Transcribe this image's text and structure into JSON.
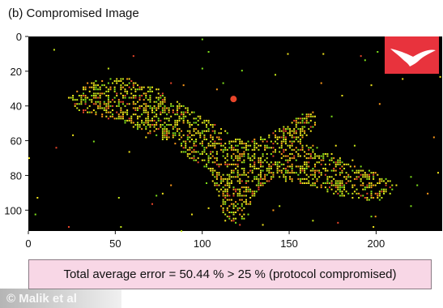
{
  "panel_title": "(b) Compromised Image",
  "error_text": "Total average error = 50.44 % > 25 % (protocol compromised)",
  "credit_text": "© Malik et al",
  "inset_icon": "bird-silhouette-icon",
  "colors": {
    "plot_background": "#000000",
    "inset_background": "#e8333d",
    "error_box_background": "#f8d7e6",
    "pixel_palette": [
      "#f2e61c",
      "#c6e81a",
      "#7fe11b",
      "#ff9a1a",
      "#e8452a"
    ]
  },
  "chart_data": {
    "type": "heatmap",
    "title": "(b) Compromised Image",
    "x_ticks": [
      "0",
      "50",
      "100",
      "150",
      "200"
    ],
    "y_ticks": [
      "0",
      "20",
      "40",
      "60",
      "80",
      "100"
    ],
    "xlim": [
      0,
      238
    ],
    "ylim": [
      0,
      112
    ],
    "y_axis_inverted": true,
    "grid": false,
    "legend": "none",
    "bird_outline_points": [
      [
        22,
        35
      ],
      [
        35,
        25
      ],
      [
        55,
        23
      ],
      [
        75,
        30
      ],
      [
        95,
        43
      ],
      [
        110,
        52
      ],
      [
        125,
        60
      ],
      [
        140,
        55
      ],
      [
        155,
        45
      ],
      [
        165,
        42
      ],
      [
        165,
        50
      ],
      [
        158,
        60
      ],
      [
        170,
        65
      ],
      [
        185,
        72
      ],
      [
        200,
        78
      ],
      [
        212,
        85
      ],
      [
        200,
        95
      ],
      [
        180,
        92
      ],
      [
        160,
        85
      ],
      [
        140,
        82
      ],
      [
        130,
        90
      ],
      [
        128,
        100
      ],
      [
        120,
        110
      ],
      [
        112,
        102
      ],
      [
        108,
        90
      ],
      [
        104,
        78
      ],
      [
        90,
        68
      ],
      [
        80,
        60
      ],
      [
        65,
        55
      ],
      [
        50,
        48
      ],
      [
        38,
        45
      ],
      [
        28,
        43
      ]
    ],
    "isolated_point": [
      118,
      36
    ]
  }
}
